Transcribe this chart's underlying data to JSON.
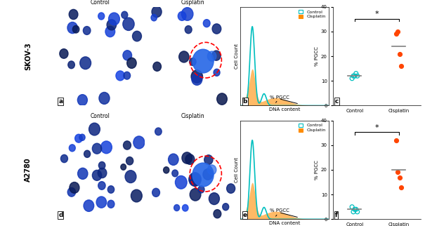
{
  "title": "",
  "row1_label": "SKOV-3",
  "row2_label": "A2780",
  "panel_labels": [
    "a",
    "b",
    "c",
    "d",
    "e",
    "f"
  ],
  "scatter_c_control": [
    11,
    12,
    12,
    13,
    12
  ],
  "scatter_c_cisplatin": [
    29,
    30,
    21,
    16
  ],
  "scatter_c_control_mean": 12,
  "scatter_c_cisplatin_mean": 24,
  "scatter_f_control": [
    5,
    3,
    4,
    4,
    3
  ],
  "scatter_f_cisplatin": [
    32,
    19,
    17,
    13
  ],
  "scatter_f_control_mean": 4,
  "scatter_f_cisplatin_mean": 20,
  "ylim_c": [
    0,
    40
  ],
  "ylim_f": [
    0,
    40
  ],
  "yticks_c": [
    0,
    10,
    20,
    30,
    40
  ],
  "yticks_f": [
    0,
    10,
    20,
    30,
    40
  ],
  "control_color": "#00BFBF",
  "cisplatin_color": "#FF4500",
  "mean_line_color": "#808080",
  "bg_color": "#ffffff",
  "border_color": "#cccccc",
  "scatter_control_open_color": "#00BFBF",
  "scatter_cisplatin_fill_color": "#FF4500"
}
